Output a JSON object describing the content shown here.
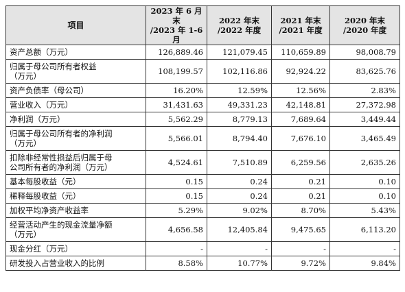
{
  "table": {
    "headers": [
      "项目",
      "2023 年 6 月末\n/2023 年 1-6 月",
      "2022 年末\n/2022 年度",
      "2021 年末\n/2021 年度",
      "2020 年末\n/2020 年度"
    ],
    "rows": [
      {
        "label": "资产总额（万元）",
        "values": [
          "126,889.46",
          "121,079.45",
          "110,659.89",
          "98,008.79"
        ]
      },
      {
        "label": "归属于母公司所有者权益\n（万元）",
        "values": [
          "108,199.57",
          "102,116.86",
          "92,924.22",
          "83,625.76"
        ]
      },
      {
        "label": "资产负债率（母公司）",
        "values": [
          "16.20%",
          "12.59%",
          "12.56%",
          "2.83%"
        ]
      },
      {
        "label": "营业收入（万元）",
        "values": [
          "31,431.63",
          "49,331.23",
          "42,148.81",
          "27,372.98"
        ]
      },
      {
        "label": "净利润（万元）",
        "values": [
          "5,562.29",
          "8,779.13",
          "7,689.64",
          "3,449.44"
        ]
      },
      {
        "label": "归属于母公司所有者的净利润\n（万元）",
        "values": [
          "5,566.01",
          "8,794.40",
          "7,676.10",
          "3,465.49"
        ]
      },
      {
        "label": "扣除非经常性损益后归属于母\n公司所有者的净利润（万元）",
        "values": [
          "4,524.61",
          "7,510.89",
          "6,259.56",
          "2,635.26"
        ]
      },
      {
        "label": "基本每股收益（元）",
        "values": [
          "0.15",
          "0.24",
          "0.21",
          "0.10"
        ]
      },
      {
        "label": "稀释每股收益（元）",
        "values": [
          "0.15",
          "0.24",
          "0.21",
          "0.10"
        ]
      },
      {
        "label": "加权平均净资产收益率",
        "values": [
          "5.29%",
          "9.02%",
          "8.70%",
          "5.43%"
        ]
      },
      {
        "label": "经营活动产生的现金流量净额\n（万元）",
        "values": [
          "4,656.58",
          "12,405.84",
          "9,475.65",
          "6,113.20"
        ]
      },
      {
        "label": "现金分红（万元）",
        "values": [
          "-",
          "-",
          "-",
          "-"
        ]
      },
      {
        "label": "研发投入占营业收入的比例",
        "values": [
          "8.58%",
          "10.77%",
          "9.72%",
          "9.84%"
        ]
      }
    ]
  }
}
